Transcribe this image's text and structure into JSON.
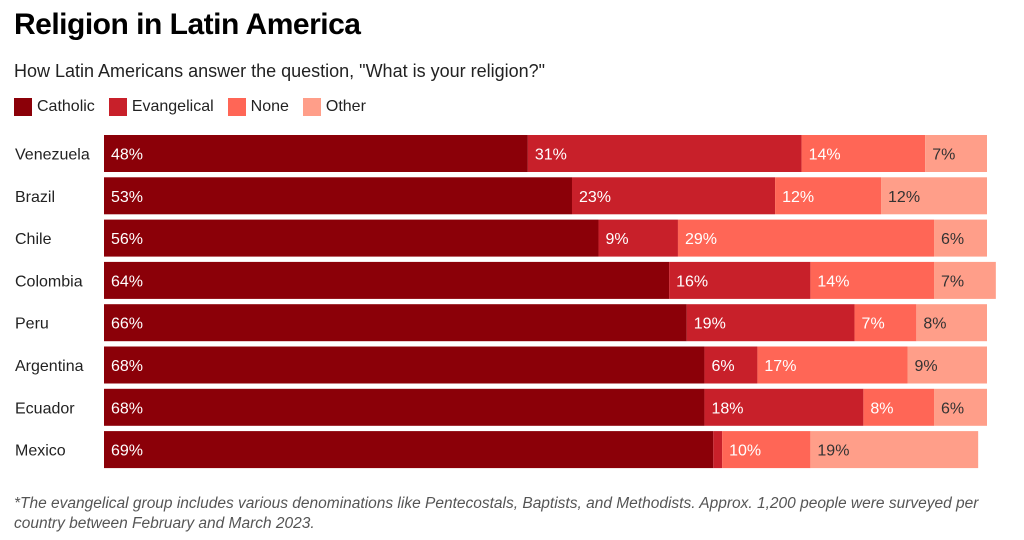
{
  "header": {
    "title": "Religion in Latin America",
    "subtitle": "How Latin Americans answer the question, \"What is your religion?\""
  },
  "footnote": "*The evangelical group includes various denominations like Pentecostals, Baptists, and Methodists. Approx. 1,200 people were surveyed per country between February and March 2023.",
  "chart_data": {
    "type": "bar",
    "orientation": "horizontal",
    "stacked": true,
    "title": "Religion in Latin America",
    "subtitle": "How Latin Americans answer the question, \"What is your religion?\"",
    "legend_position": "top-left",
    "categories": [
      "Venezuela",
      "Brazil",
      "Chile",
      "Colombia",
      "Peru",
      "Argentina",
      "Ecuador",
      "Mexico"
    ],
    "series": [
      {
        "name": "Catholic",
        "color": "#8b0008",
        "label_color": "#ffffff",
        "values": [
          48,
          53,
          56,
          64,
          66,
          68,
          68,
          69
        ]
      },
      {
        "name": "Evangelical",
        "color": "#c8202a",
        "label_color": "#ffffff",
        "values": [
          31,
          23,
          9,
          16,
          19,
          6,
          18,
          1
        ]
      },
      {
        "name": "None",
        "color": "#ff6656",
        "label_color": "#ffffff",
        "values": [
          14,
          12,
          29,
          14,
          7,
          17,
          8,
          10
        ]
      },
      {
        "name": "Other",
        "color": "#ff9e89",
        "label_color": "#333333",
        "values": [
          7,
          12,
          6,
          7,
          8,
          9,
          6,
          19
        ]
      }
    ],
    "data_labels": [
      [
        "48%",
        "31%",
        "14%",
        "7%"
      ],
      [
        "53%",
        "23%",
        "12%",
        "12%"
      ],
      [
        "56%",
        "9%",
        "29%",
        "6%"
      ],
      [
        "64%",
        "16%",
        "14%",
        "7%"
      ],
      [
        "66%",
        "19%",
        "7%",
        "8%"
      ],
      [
        "68%",
        "6%",
        "17%",
        "9%"
      ],
      [
        "68%",
        "18%",
        "8%",
        "6%"
      ],
      [
        "69%",
        "",
        "10%",
        "19%"
      ]
    ],
    "xlim": [
      0,
      100
    ]
  }
}
